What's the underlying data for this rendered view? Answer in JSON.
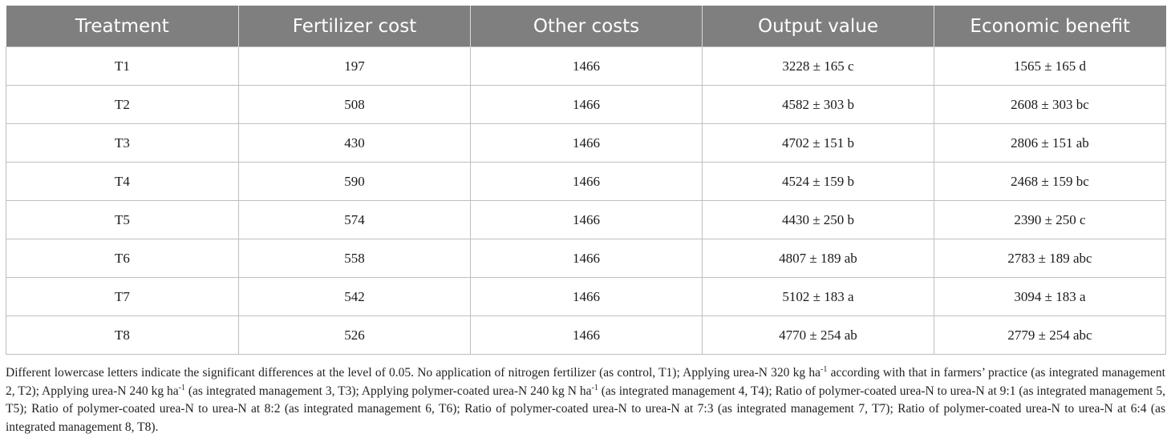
{
  "table": {
    "headers": [
      "Treatment",
      "Fertilizer cost",
      "Other costs",
      "Output value",
      "Economic benefit"
    ],
    "rows": [
      [
        "T1",
        "197",
        "1466",
        "3228 ± 165 c",
        "1565 ± 165 d"
      ],
      [
        "T2",
        "508",
        "1466",
        "4582 ± 303 b",
        "2608 ± 303 bc"
      ],
      [
        "T3",
        "430",
        "1466",
        "4702 ± 151 b",
        "2806 ± 151 ab"
      ],
      [
        "T4",
        "590",
        "1466",
        "4524 ± 159 b",
        "2468 ± 159 bc"
      ],
      [
        "T5",
        "574",
        "1466",
        "4430 ± 250 b",
        "2390 ± 250 c"
      ],
      [
        "T6",
        "558",
        "1466",
        "4807 ± 189 ab",
        "2783 ± 189 abc"
      ],
      [
        "T7",
        "542",
        "1466",
        "5102 ± 183 a",
        "3094 ± 183 a"
      ],
      [
        "T8",
        "526",
        "1466",
        "4770 ± 254 ab",
        "2779 ± 254 abc"
      ]
    ],
    "colors": {
      "header_bg": "#7f7f7f",
      "header_text": "#ffffff",
      "grid": "#bfbfbf"
    }
  },
  "footnote": {
    "s1": "Different lowercase letters indicate the significant differences at the level of 0.05. No application of nitrogen fertilizer (as control, T1); Applying urea-N 320 kg ha",
    "sup1": "-1",
    "s2": " according with that in farmers’ practice (as integrated management 2, T2); Applying urea-N 240 kg ha",
    "sup2": "-1",
    "s3": " (as integrated management 3, T3); Applying polymer-coated urea-N 240 kg N ha",
    "sup3": "-1",
    "s4": " (as integrated management 4, T4); Ratio of polymer-coated urea-N to urea-N at 9:1 (as integrated management 5, T5); Ratio of polymer-coated urea-N to urea-N at 8:2 (as integrated management 6, T6); Ratio of polymer-coated urea-N to urea-N at 7:3 (as integrated management 7, T7); Ratio of polymer-coated urea-N to urea-N at 6:4 (as integrated management 8, T8)."
  }
}
